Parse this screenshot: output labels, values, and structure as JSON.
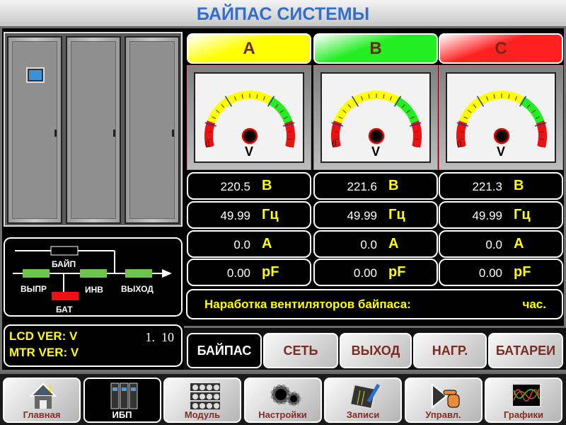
{
  "title": "БАЙПАС СИСТЕМЫ",
  "diagram": {
    "bypass": "БАЙП",
    "rectifier": "ВЫПР",
    "inverter": "ИНВ",
    "output": "ВЫХОД",
    "battery": "БАТ",
    "colors": {
      "active": "#6cc64a",
      "fault": "#ee1111",
      "inactive": "#000000"
    }
  },
  "version": {
    "lcd": "LCD VER: V",
    "mtr": "MTR VER: V",
    "lcd_value": "1.  10"
  },
  "phases": [
    {
      "name": "A",
      "color": "#ffff00",
      "gauge_zero": "0",
      "gauge_unit": "V",
      "voltage": "220.5",
      "voltage_unit": "В",
      "freq": "49.99",
      "freq_unit": "Гц",
      "current": "0.0",
      "current_unit": "A",
      "pf": "0.00",
      "pf_unit": "pF"
    },
    {
      "name": "B",
      "color": "#22ee22",
      "gauge_zero": "0",
      "gauge_unit": "V",
      "voltage": "221.6",
      "voltage_unit": "В",
      "freq": "49.99",
      "freq_unit": "Гц",
      "current": "0.0",
      "current_unit": "A",
      "pf": "0.00",
      "pf_unit": "pF"
    },
    {
      "name": "C",
      "color": "#ff2020",
      "gauge_zero": "0",
      "gauge_unit": "V",
      "voltage": "221.3",
      "voltage_unit": "В",
      "freq": "49.99",
      "freq_unit": "Гц",
      "current": "0.0",
      "current_unit": "A",
      "pf": "0.00",
      "pf_unit": "pF"
    }
  ],
  "fan": {
    "label": "Наработка вентиляторов байпаса:",
    "unit": "час."
  },
  "tabs": [
    {
      "label": "БАЙПАС",
      "active": true
    },
    {
      "label": "СЕТЬ"
    },
    {
      "label": "ВЫХОД"
    },
    {
      "label": "НАГР."
    },
    {
      "label": "БАТАРЕИ"
    }
  ],
  "nav": [
    {
      "label": "Главная",
      "icon": "home-icon"
    },
    {
      "label": "ИБП",
      "icon": "ups-cabinet-icon",
      "active": true
    },
    {
      "label": "Модуль",
      "icon": "module-rack-icon"
    },
    {
      "label": "Настройки",
      "icon": "gears-icon"
    },
    {
      "label": "Записи",
      "icon": "records-pen-icon"
    },
    {
      "label": "Управл.",
      "icon": "hand-pointer-icon"
    },
    {
      "label": "Графики",
      "icon": "waveform-chart-icon"
    }
  ]
}
